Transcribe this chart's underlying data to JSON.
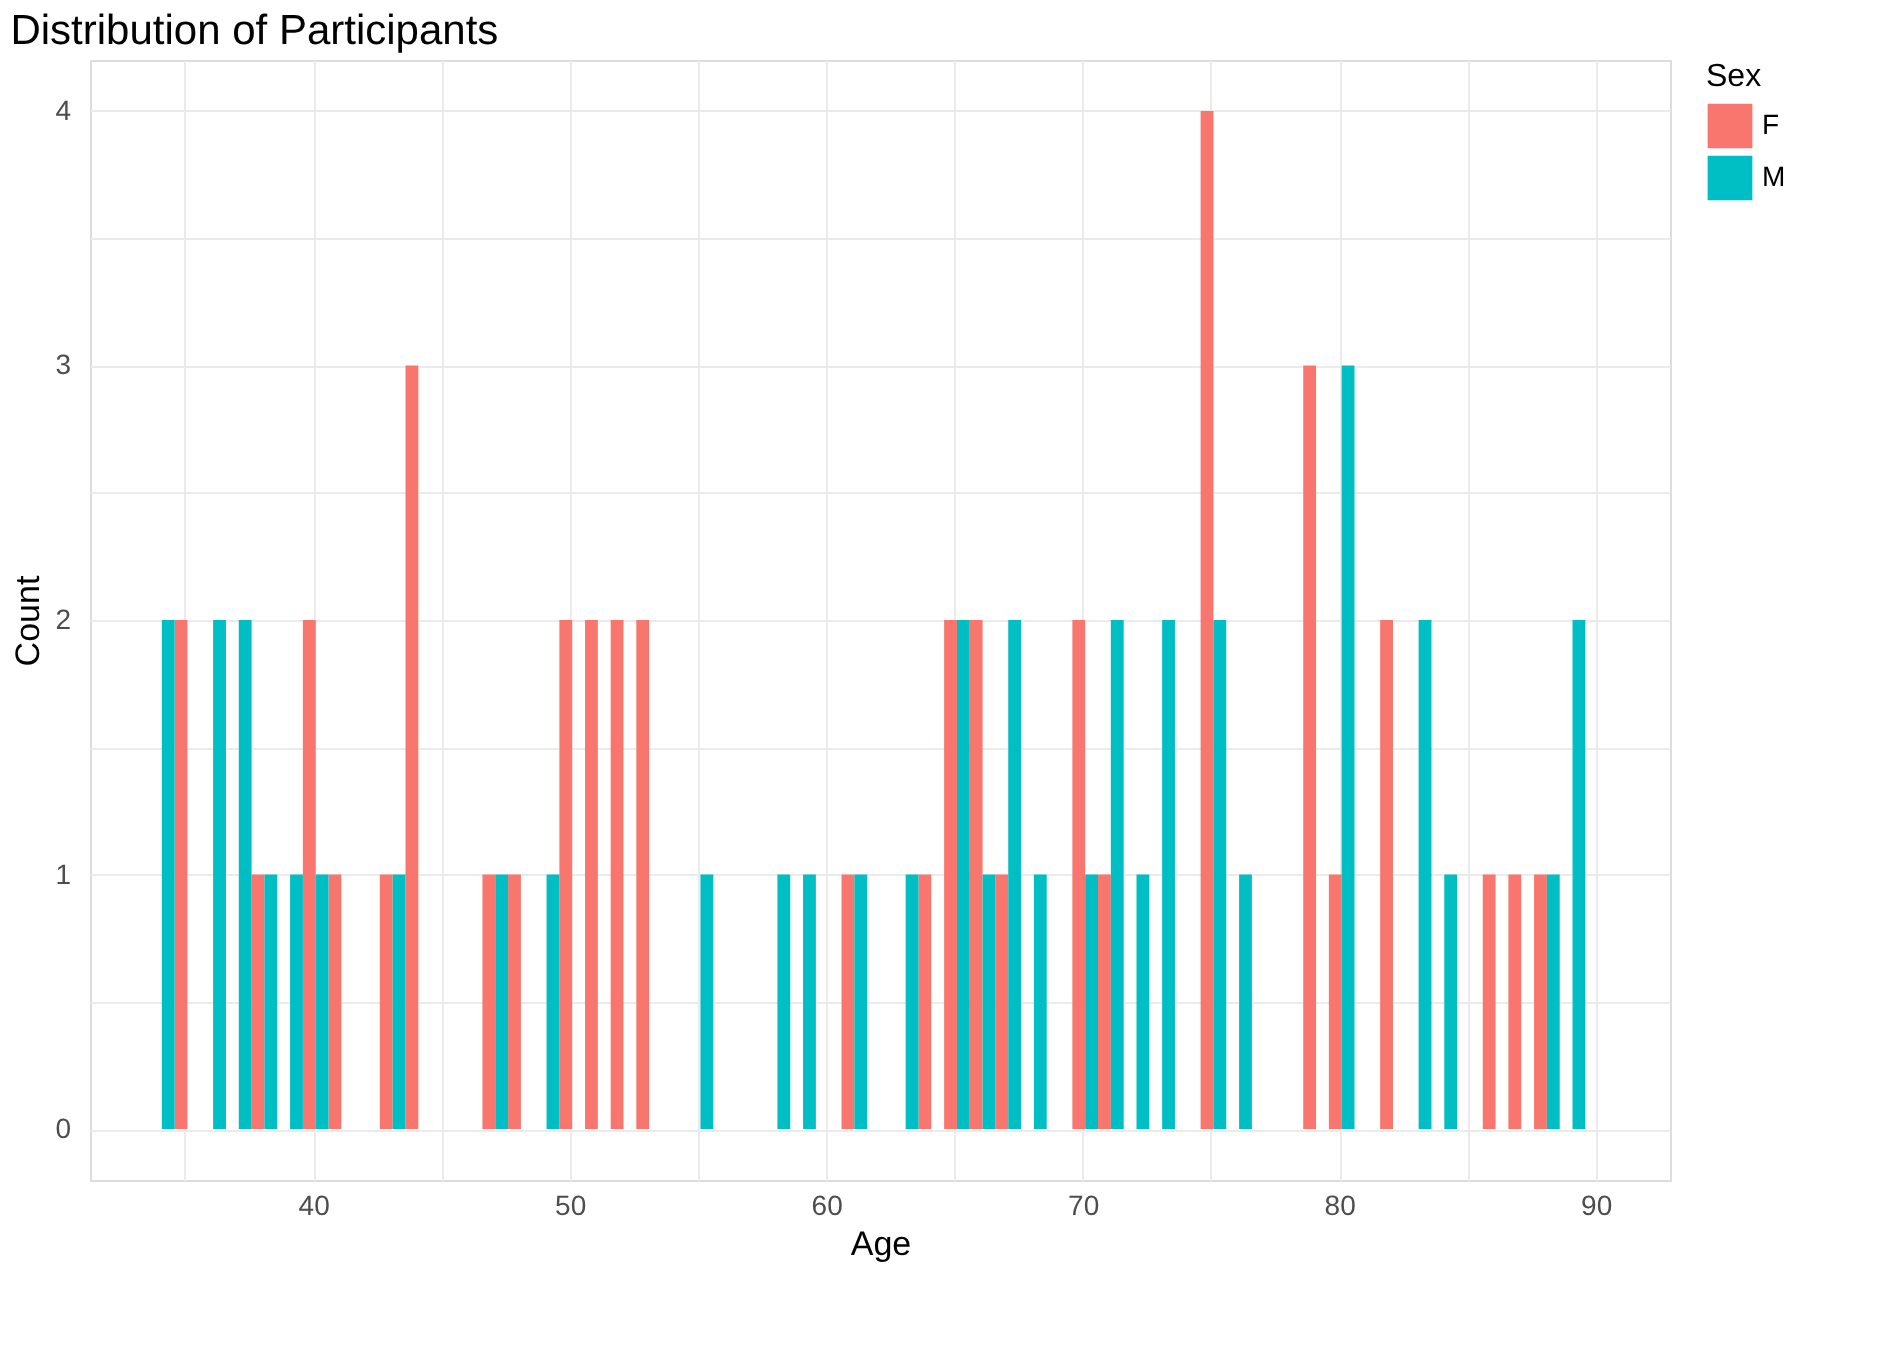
{
  "chart_data": {
    "type": "histogram",
    "title": "Distribution of Participants",
    "xlabel": "Age",
    "ylabel": "Count",
    "legend_title": "Sex",
    "bins": [
      34.1,
      35.1,
      36.1,
      37.1,
      38.1,
      39.1,
      40.1,
      41.1,
      42.1,
      43.1,
      44.1,
      45.1,
      46.1,
      47.1,
      48.1,
      49.1,
      50.1,
      51.1,
      52.1,
      53.1,
      54.1,
      55.1,
      56.1,
      57.1,
      58.1,
      59.1,
      60.1,
      61.1,
      62.1,
      63.1,
      64.1,
      65.1,
      66.1,
      67.1,
      68.1,
      69.1,
      70.1,
      71.1,
      72.1,
      73.1,
      74.1,
      75.1,
      76.1,
      77.1,
      78.1,
      79.1,
      80.1,
      81.1,
      82.1,
      83.1,
      84.1,
      85.1,
      86.1,
      87.1,
      88.1,
      89.1,
      90.1
    ],
    "series": [
      {
        "name": "F",
        "color": "#f8766d",
        "values": [
          2,
          0,
          0,
          1,
          0,
          2,
          1,
          0,
          1,
          3,
          0,
          0,
          1,
          1,
          0,
          2,
          2,
          2,
          2,
          0,
          0,
          0,
          0,
          0,
          0,
          0,
          1,
          0,
          0,
          1,
          2,
          2,
          1,
          0,
          0,
          2,
          1,
          0,
          0,
          0,
          4,
          0,
          0,
          0,
          3,
          1,
          0,
          2,
          0,
          0,
          0,
          1,
          1,
          1,
          0,
          0
        ]
      },
      {
        "name": "M",
        "color": "#00bfc4",
        "values": [
          2,
          0,
          2,
          2,
          1,
          1,
          1,
          0,
          0,
          1,
          0,
          0,
          0,
          1,
          0,
          1,
          0,
          0,
          0,
          0,
          0,
          1,
          0,
          0,
          1,
          1,
          0,
          1,
          0,
          1,
          0,
          2,
          1,
          2,
          1,
          0,
          1,
          2,
          1,
          2,
          0,
          2,
          1,
          0,
          0,
          0,
          3,
          0,
          0,
          2,
          1,
          0,
          0,
          0,
          1,
          2
        ]
      }
    ],
    "xlim": [
      31.3,
      92.9
    ],
    "xticks": [
      {
        "value": 35,
        "label": null
      },
      40,
      {
        "value": 45,
        "label": null
      },
      50,
      {
        "value": 55,
        "label": null
      },
      60,
      {
        "value": 65,
        "label": null
      },
      70,
      {
        "value": 75,
        "label": null
      },
      80,
      {
        "value": 85,
        "label": null
      },
      90
    ],
    "ylim": [
      -0.2,
      4.2
    ],
    "yticks": [
      0,
      {
        "value": 0.5,
        "label": null
      },
      1,
      {
        "value": 1.5,
        "label": null
      },
      2,
      {
        "value": 2.5,
        "label": null
      },
      3,
      {
        "value": 3.5,
        "label": null
      },
      4
    ],
    "grid": true,
    "legend": "right"
  }
}
